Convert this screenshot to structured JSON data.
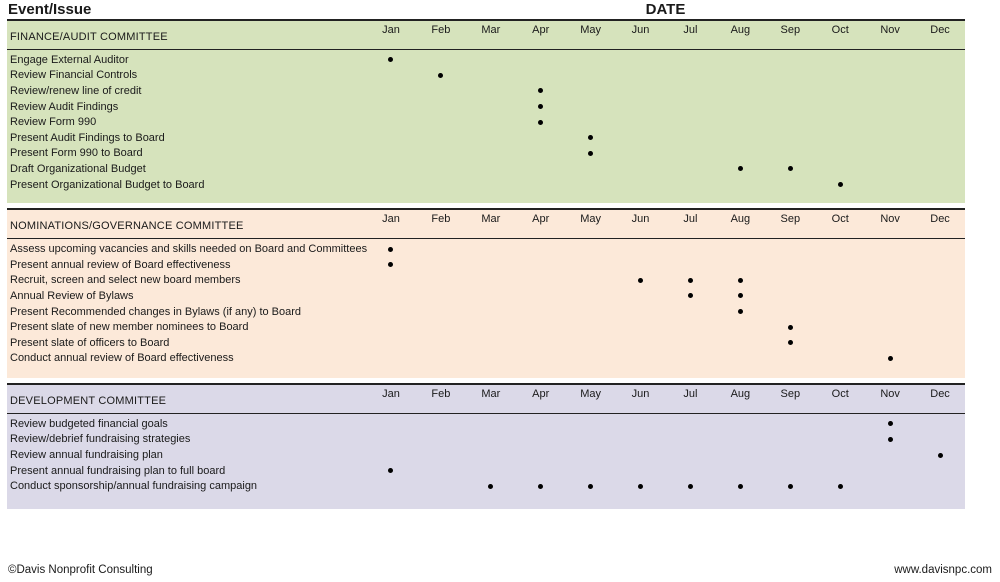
{
  "title_row": {
    "event_issue": "Event/Issue",
    "date": "DATE"
  },
  "months": [
    "Jan",
    "Feb",
    "Mar",
    "Apr",
    "May",
    "Jun",
    "Jul",
    "Aug",
    "Sep",
    "Oct",
    "Nov",
    "Dec"
  ],
  "colors": {
    "finance_band": "#d6e3bc",
    "nominations_band": "#fce9d9",
    "development_band": "#dbd9e8",
    "rule_line": "#222222",
    "dot": "#000000"
  },
  "sections": [
    {
      "name": "FINANCE/AUDIT COMMITTEE",
      "color": "#d6e3bc",
      "rows": [
        {
          "label": "Engage External Auditor",
          "dots": [
            "Jan"
          ]
        },
        {
          "label": "Review Financial Controls",
          "dots": [
            "Feb"
          ]
        },
        {
          "label": "Review/renew line of credit",
          "dots": [
            "Apr"
          ]
        },
        {
          "label": "Review Audit Findings",
          "dots": [
            "Apr"
          ]
        },
        {
          "label": "Review Form 990",
          "dots": [
            "Apr"
          ]
        },
        {
          "label": "Present Audit Findings to Board",
          "dots": [
            "May"
          ]
        },
        {
          "label": "Present Form 990 to Board",
          "dots": [
            "May"
          ]
        },
        {
          "label": "Draft Organizational Budget",
          "dots": [
            "Aug",
            "Sep"
          ]
        },
        {
          "label": "Present Organizational Budget to Board",
          "dots": [
            "Oct"
          ]
        }
      ]
    },
    {
      "name": "NOMINATIONS/GOVERNANCE COMMITTEE",
      "color": "#fce9d9",
      "rows": [
        {
          "label": "Assess upcoming vacancies and skills needed on Board and Committees",
          "dots": [
            "Jan"
          ]
        },
        {
          "label": "Present annual review of Board effectiveness",
          "dots": [
            "Jan"
          ]
        },
        {
          "label": "Recruit, screen and select new board members",
          "dots": [
            "Jun",
            "Jul",
            "Aug"
          ]
        },
        {
          "label": "Annual Review of Bylaws",
          "dots": [
            "Jul",
            "Aug"
          ]
        },
        {
          "label": "Present Recommended changes in Bylaws (if any) to Board",
          "dots": [
            "Aug"
          ]
        },
        {
          "label": "Present slate of new member nominees to Board",
          "dots": [
            "Sep"
          ]
        },
        {
          "label": "Present slate of officers to Board",
          "dots": [
            "Sep"
          ]
        },
        {
          "label": "Conduct annual review of Board effectiveness",
          "dots": [
            "Nov"
          ]
        }
      ]
    },
    {
      "name": "DEVELOPMENT COMMITTEE",
      "color": "#dbd9e8",
      "rows": [
        {
          "label": "Review budgeted financial goals",
          "dots": [
            "Nov"
          ]
        },
        {
          "label": "Review/debrief fundraising strategies",
          "dots": [
            "Nov"
          ]
        },
        {
          "label": "Review annual fundraising plan",
          "dots": [
            "Dec"
          ]
        },
        {
          "label": "Present annual fundraising plan to full board",
          "dots": [
            "Jan"
          ]
        },
        {
          "label": "Conduct sponsorship/annual fundraising campaign",
          "dots": [
            "Mar",
            "Apr",
            "May",
            "Jun",
            "Jul",
            "Aug",
            "Sep",
            "Oct"
          ]
        }
      ]
    }
  ],
  "footer": {
    "left": "©Davis Nonprofit Consulting",
    "right": "www.davisnpc.com"
  }
}
